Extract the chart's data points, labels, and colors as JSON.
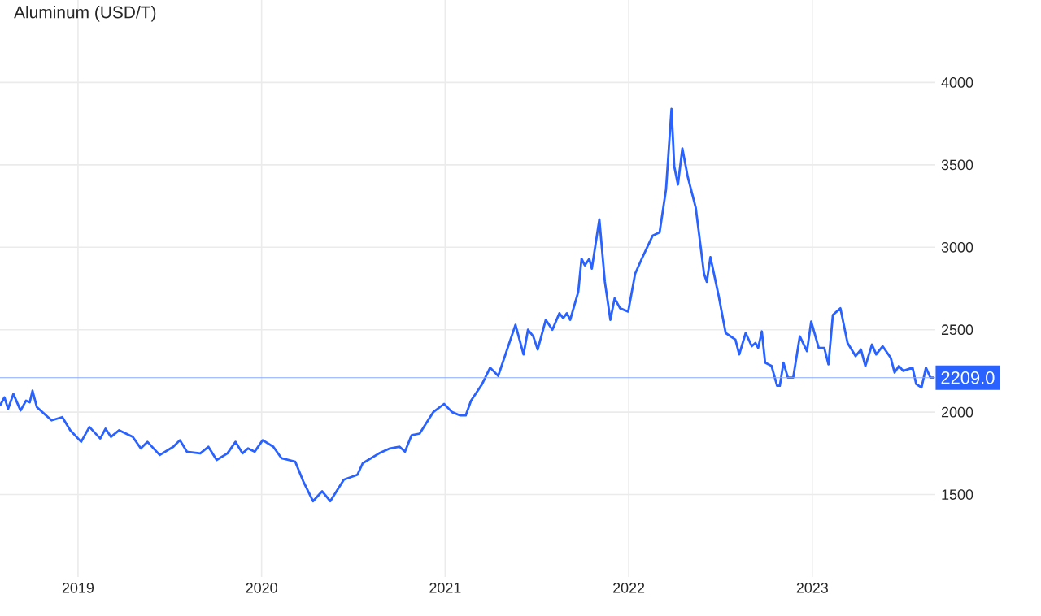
{
  "chart_data": {
    "type": "line",
    "title": "Aluminum (USD/T)",
    "x": [
      2018.575,
      2018.599,
      2018.619,
      2018.648,
      2018.687,
      2018.717,
      2018.737,
      2018.752,
      2018.776,
      2018.856,
      2018.914,
      2018.958,
      2019.017,
      2019.062,
      2019.121,
      2019.15,
      2019.179,
      2019.224,
      2019.298,
      2019.342,
      2019.378,
      2019.445,
      2019.519,
      2019.555,
      2019.593,
      2019.666,
      2019.71,
      2019.755,
      2019.814,
      2019.858,
      2019.896,
      2019.926,
      2019.962,
      2020.006,
      2020.064,
      2020.109,
      2020.183,
      2020.227,
      2020.28,
      2020.33,
      2020.374,
      2020.448,
      2020.522,
      2020.551,
      2020.64,
      2020.699,
      2020.752,
      2020.781,
      2020.817,
      2020.861,
      2020.935,
      2020.994,
      2021.038,
      2021.082,
      2021.112,
      2021.141,
      2021.201,
      2021.245,
      2021.289,
      2021.383,
      2021.427,
      2021.451,
      2021.48,
      2021.504,
      2021.548,
      2021.584,
      2021.622,
      2021.643,
      2021.663,
      2021.681,
      2021.725,
      2021.743,
      2021.761,
      2021.785,
      2021.799,
      2021.84,
      2021.87,
      2021.9,
      2021.923,
      2021.953,
      2021.997,
      2022.035,
      2022.071,
      2022.13,
      2022.168,
      2022.203,
      2022.233,
      2022.248,
      2022.268,
      2022.292,
      2022.321,
      2022.365,
      2022.41,
      2022.425,
      2022.445,
      2022.489,
      2022.528,
      2022.581,
      2022.602,
      2022.637,
      2022.67,
      2022.69,
      2022.705,
      2022.725,
      2022.743,
      2022.778,
      2022.808,
      2022.823,
      2022.843,
      2022.867,
      2022.896,
      2022.932,
      2022.971,
      2022.994,
      2023.035,
      2023.065,
      2023.088,
      2023.112,
      2023.153,
      2023.192,
      2023.236,
      2023.265,
      2023.289,
      2023.325,
      2023.348,
      2023.383,
      2023.427,
      2023.448,
      2023.472,
      2023.495,
      2023.546,
      2023.566,
      2023.595,
      2023.619,
      2023.643,
      2023.664
    ],
    "series": [
      {
        "color": "#2962ff",
        "values": [
          2040,
          2090,
          2020,
          2110,
          2010,
          2070,
          2060,
          2130,
          2030,
          1950,
          1970,
          1890,
          1820,
          1910,
          1840,
          1900,
          1850,
          1890,
          1850,
          1780,
          1820,
          1740,
          1790,
          1830,
          1760,
          1750,
          1790,
          1710,
          1750,
          1820,
          1750,
          1780,
          1760,
          1830,
          1790,
          1720,
          1700,
          1580,
          1460,
          1520,
          1460,
          1590,
          1620,
          1690,
          1750,
          1780,
          1790,
          1760,
          1860,
          1870,
          2000,
          2050,
          2000,
          1980,
          1980,
          2070,
          2170,
          2270,
          2220,
          2530,
          2350,
          2500,
          2460,
          2380,
          2560,
          2500,
          2600,
          2570,
          2600,
          2560,
          2730,
          2930,
          2890,
          2930,
          2870,
          3170,
          2790,
          2560,
          2690,
          2630,
          2610,
          2840,
          2930,
          3070,
          3090,
          3350,
          3840,
          3490,
          3380,
          3600,
          3430,
          3240,
          2840,
          2790,
          2940,
          2710,
          2480,
          2440,
          2350,
          2480,
          2400,
          2420,
          2390,
          2490,
          2300,
          2280,
          2160,
          2160,
          2300,
          2210,
          2210,
          2460,
          2370,
          2550,
          2390,
          2390,
          2290,
          2590,
          2630,
          2420,
          2340,
          2380,
          2280,
          2410,
          2350,
          2400,
          2330,
          2240,
          2280,
          2250,
          2270,
          2170,
          2150,
          2270,
          2210,
          2210
        ]
      }
    ],
    "xlim": [
      2018.575,
      2023.67
    ],
    "ylim": [
      1000,
      4500
    ],
    "xticks": [
      2019,
      2020,
      2021,
      2022,
      2023
    ],
    "yticks": [
      1500,
      2000,
      2500,
      3000,
      3500,
      4000
    ],
    "grid": true,
    "ref_lines": [
      {
        "axis": "y",
        "value": 2209,
        "label": "2209.0",
        "color": "#89a9ff"
      }
    ]
  }
}
